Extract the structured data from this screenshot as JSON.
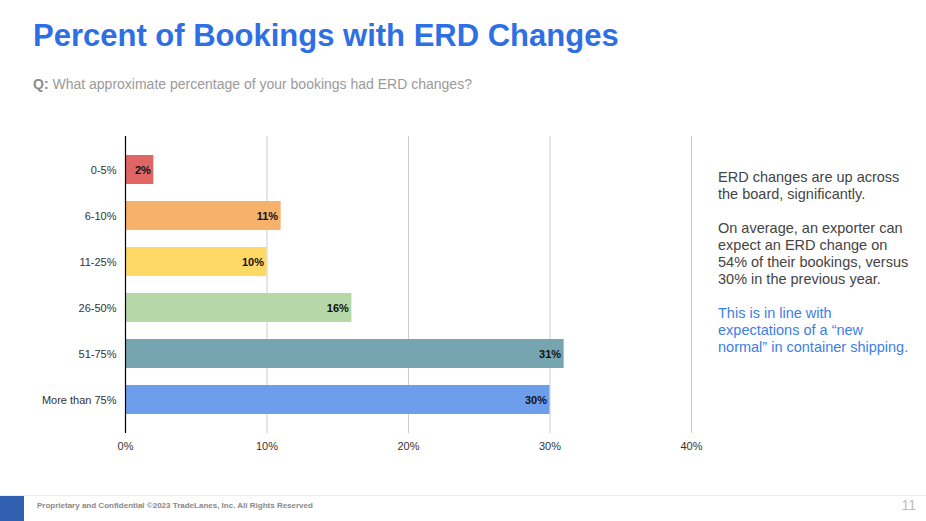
{
  "chart_data": {
    "type": "bar",
    "title": "Percent of Bookings with ERD Changes",
    "subtitle": "Q: What approximate percentage of your bookings had ERD changes?",
    "orientation": "horizontal",
    "categories": [
      "0-5%",
      "6-10%",
      "11-25%",
      "26-50%",
      "51-75%",
      "More than 75%"
    ],
    "values": [
      2,
      11,
      10,
      16,
      31,
      30
    ],
    "value_labels": [
      "2%",
      "11%",
      "10%",
      "16%",
      "31%",
      "30%"
    ],
    "colors": [
      "#e06666",
      "#f6b26b",
      "#ffd966",
      "#b6d7a8",
      "#76a5af",
      "#6d9eeb"
    ],
    "data_labels": true,
    "grid": true,
    "xlim": [
      0,
      40
    ],
    "xticks": [
      {
        "value": 0,
        "label": "0%"
      },
      {
        "value": 10,
        "label": "10%"
      },
      {
        "value": 20,
        "label": "20%"
      },
      {
        "value": 30,
        "label": "30%"
      },
      {
        "value": 40,
        "label": "40%"
      }
    ],
    "annotations": [
      "ERD changes are up across the board, significantly.",
      "On average, an exporter can expect an ERD change on 54% of their bookings, versus 30% in the previous year.",
      "This is in line with expectations of a “new normal” in container shipping."
    ],
    "footer": "Proprietary and Confidential ©2023 TradeLanes, Inc. All Rights Reserved",
    "page_number": "11"
  }
}
